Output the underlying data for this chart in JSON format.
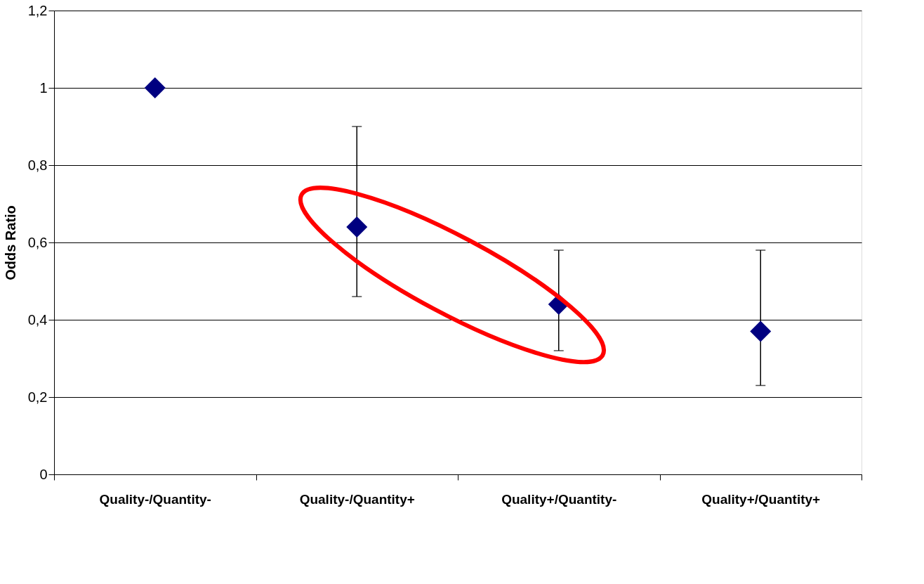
{
  "chart_data": {
    "type": "scatter",
    "ylabel": "Odds Ratio",
    "categories": [
      "Quality-/Quantity-",
      "Quality-/Quantity+",
      "Quality+/Quantity-",
      "Quality+/Quantity+"
    ],
    "series": [
      {
        "color": "#000080",
        "values": [
          1.0,
          0.64,
          0.44,
          0.37
        ],
        "errors": [
          null,
          [
            0.46,
            0.9
          ],
          [
            0.32,
            0.58
          ],
          [
            0.23,
            0.58
          ]
        ]
      }
    ],
    "ylim": [
      0,
      1.2
    ],
    "yticks": [
      0,
      {
        "value": 0.2,
        "label": "0,2"
      },
      {
        "value": 0.4,
        "label": "0,4"
      },
      {
        "value": 0.6,
        "label": "0,6"
      },
      {
        "value": 0.8,
        "label": "0,8"
      },
      1,
      {
        "value": 1.2,
        "label": "1,2"
      }
    ],
    "grid": "y",
    "marker": "diamond"
  }
}
